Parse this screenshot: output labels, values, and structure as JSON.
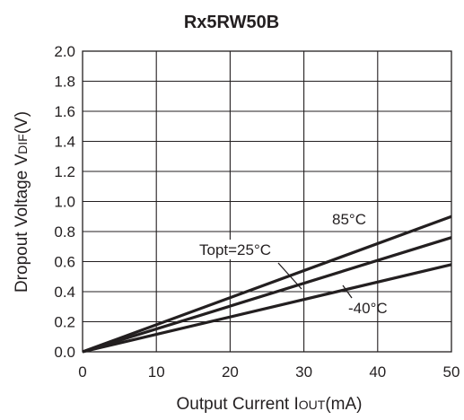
{
  "chart_data": {
    "type": "line",
    "title": "Rx5RW50B",
    "xlabel": "Output Current I",
    "xlabel_sub": "OUT",
    "xlabel_tail": "(mA)",
    "ylabel": "Dropout Voltage V",
    "ylabel_sub": "DIF",
    "ylabel_tail": "(V)",
    "xlim": [
      0,
      50
    ],
    "ylim": [
      0.0,
      2.0
    ],
    "xticks": [
      "0",
      "10",
      "20",
      "30",
      "40",
      "50"
    ],
    "yticks": [
      "0.0",
      "0.2",
      "0.4",
      "0.6",
      "0.8",
      "1.0",
      "1.2",
      "1.4",
      "1.6",
      "1.8",
      "2.0"
    ],
    "grid": true,
    "series": [
      {
        "name": "85°C",
        "x": [
          0,
          50
        ],
        "y": [
          0,
          0.9
        ]
      },
      {
        "name": "Topt=25°C",
        "x": [
          0,
          50
        ],
        "y": [
          0,
          0.76
        ]
      },
      {
        "name": "-40°C",
        "x": [
          0,
          50
        ],
        "y": [
          0,
          0.58
        ]
      }
    ]
  }
}
